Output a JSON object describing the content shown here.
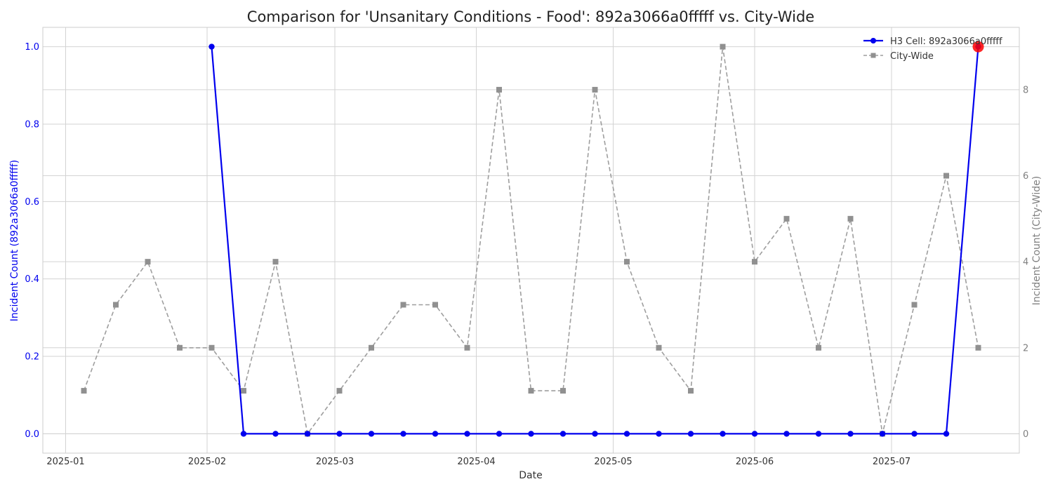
{
  "chart_data": {
    "type": "line",
    "title": "Comparison for 'Unsanitary Conditions - Food': 892a3066a0fffff vs. City-Wide",
    "xlabel": "Date",
    "ylabel_left": "Incident Count (892a3066a0fffff)",
    "ylabel_right": "Incident Count (City-Wide)",
    "x_ticks": [
      "2025-01",
      "2025-02",
      "2025-03",
      "2025-04",
      "2025-05",
      "2025-06",
      "2025-07"
    ],
    "x_range": [
      "2024-12-27",
      "2025-07-29"
    ],
    "y_left_range": [
      -0.05,
      1.05
    ],
    "y_left_ticks": [
      "0.0",
      "0.2",
      "0.4",
      "0.6",
      "0.8",
      "1.0"
    ],
    "y_right_range": [
      -0.45,
      9.45
    ],
    "y_right_ticks": [
      "0",
      "2",
      "4",
      "6",
      "8"
    ],
    "grid": true,
    "legend_position": "top-right",
    "colors": {
      "h3": "#0000ee",
      "city": "#9e9e9e",
      "highlight": "#ff0000",
      "left_axis": "#0000ee",
      "right_axis": "#808080"
    },
    "series": [
      {
        "name": "H3 Cell: 892a3066a0fffff",
        "axis": "left",
        "style": "solid",
        "marker": "circle",
        "x": [
          "2025-02-02",
          "2025-02-09",
          "2025-02-16",
          "2025-02-23",
          "2025-03-02",
          "2025-03-09",
          "2025-03-16",
          "2025-03-23",
          "2025-03-30",
          "2025-04-06",
          "2025-04-13",
          "2025-04-20",
          "2025-04-27",
          "2025-05-04",
          "2025-05-11",
          "2025-05-18",
          "2025-05-25",
          "2025-06-01",
          "2025-06-08",
          "2025-06-15",
          "2025-06-22",
          "2025-06-29",
          "2025-07-06",
          "2025-07-13",
          "2025-07-20"
        ],
        "values": [
          1,
          0,
          0,
          0,
          0,
          0,
          0,
          0,
          0,
          0,
          0,
          0,
          0,
          0,
          0,
          0,
          0,
          0,
          0,
          0,
          0,
          0,
          0,
          0,
          1
        ]
      },
      {
        "name": "City-Wide",
        "axis": "right",
        "style": "dashed",
        "marker": "square",
        "x": [
          "2025-01-05",
          "2025-01-12",
          "2025-01-19",
          "2025-01-26",
          "2025-02-02",
          "2025-02-09",
          "2025-02-16",
          "2025-02-23",
          "2025-03-02",
          "2025-03-09",
          "2025-03-16",
          "2025-03-23",
          "2025-03-30",
          "2025-04-06",
          "2025-04-13",
          "2025-04-20",
          "2025-04-27",
          "2025-05-04",
          "2025-05-11",
          "2025-05-18",
          "2025-05-25",
          "2025-06-01",
          "2025-06-08",
          "2025-06-15",
          "2025-06-22",
          "2025-06-29",
          "2025-07-06",
          "2025-07-13",
          "2025-07-20"
        ],
        "values": [
          1,
          3,
          4,
          2,
          2,
          1,
          4,
          0,
          1,
          2,
          3,
          3,
          2,
          8,
          1,
          1,
          8,
          4,
          2,
          1,
          9,
          4,
          5,
          2,
          5,
          0,
          3,
          6,
          2
        ]
      }
    ],
    "highlight_point": {
      "series": "H3 Cell: 892a3066a0fffff",
      "x": "2025-07-20",
      "value": 1
    }
  }
}
